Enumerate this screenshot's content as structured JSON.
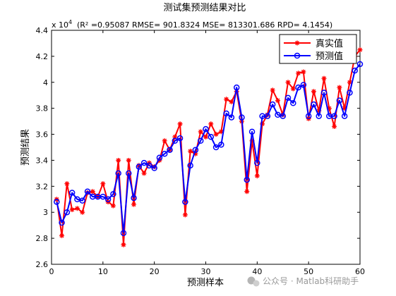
{
  "chart_data": {
    "type": "line",
    "title": "测试集预测结果对比",
    "subtitle": "(R² =0.95087 RMSE= 901.8324 MSE= 813301.686 RPD= 4.1454)",
    "xlabel": "预测样本",
    "ylabel": "预测结果",
    "y_multiplier_base": "x 10",
    "y_multiplier_exp": "4",
    "xlim": [
      0,
      60
    ],
    "ylim": [
      2.6,
      4.4
    ],
    "x_ticks": [
      "0",
      "10",
      "20",
      "30",
      "40",
      "50",
      "60"
    ],
    "y_ticks": [
      "2.6",
      "2.8",
      "3",
      "3.2",
      "3.4",
      "3.6",
      "3.8",
      "4",
      "4.2",
      "4.4"
    ],
    "grid": false,
    "legend_position": "top-right",
    "x": [
      1,
      2,
      3,
      4,
      5,
      6,
      7,
      8,
      9,
      10,
      11,
      12,
      13,
      14,
      15,
      16,
      17,
      18,
      19,
      20,
      21,
      22,
      23,
      24,
      25,
      26,
      27,
      28,
      29,
      30,
      31,
      32,
      33,
      34,
      35,
      36,
      37,
      38,
      39,
      40,
      41,
      42,
      43,
      44,
      45,
      46,
      47,
      48,
      49,
      50,
      51,
      52,
      53,
      54,
      55,
      56,
      57,
      58,
      59,
      60
    ],
    "series": [
      {
        "name": "真实值",
        "color": "#ff0000",
        "marker": "star",
        "values": [
          3.1,
          2.82,
          3.22,
          3.02,
          3.03,
          3.0,
          3.15,
          3.16,
          3.12,
          3.22,
          3.08,
          3.05,
          3.4,
          2.75,
          3.4,
          3.06,
          3.36,
          3.3,
          3.38,
          3.35,
          3.4,
          3.55,
          3.48,
          3.58,
          3.68,
          2.98,
          3.47,
          3.45,
          3.62,
          3.58,
          3.68,
          3.6,
          3.62,
          3.87,
          3.85,
          3.93,
          3.7,
          3.16,
          3.55,
          3.28,
          3.68,
          3.75,
          3.94,
          3.86,
          3.75,
          4.0,
          3.95,
          4.07,
          4.08,
          3.72,
          3.93,
          3.78,
          4.03,
          3.8,
          3.66,
          3.96,
          3.8,
          4.0,
          4.2,
          4.25
        ]
      },
      {
        "name": "预测值",
        "color": "#0000ff",
        "marker": "circle",
        "values": [
          3.08,
          2.92,
          3.0,
          3.15,
          3.1,
          3.09,
          3.16,
          3.12,
          3.12,
          3.12,
          3.1,
          3.14,
          3.3,
          2.84,
          3.3,
          3.11,
          3.35,
          3.38,
          3.36,
          3.34,
          3.42,
          3.45,
          3.48,
          3.55,
          3.57,
          3.08,
          3.36,
          3.48,
          3.55,
          3.64,
          3.58,
          3.5,
          3.52,
          3.76,
          3.73,
          3.96,
          3.73,
          3.25,
          3.62,
          3.38,
          3.74,
          3.74,
          3.83,
          3.75,
          3.74,
          3.88,
          3.84,
          3.96,
          3.98,
          3.74,
          3.83,
          3.74,
          3.92,
          3.74,
          3.74,
          3.86,
          3.74,
          3.92,
          4.09,
          4.14
        ]
      }
    ]
  },
  "watermark": "公众号 · Matlab科研助手"
}
